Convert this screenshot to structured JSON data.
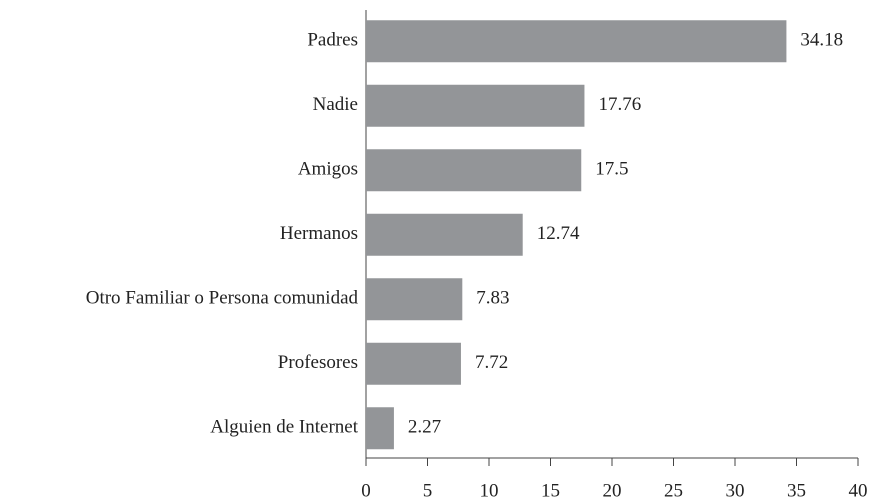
{
  "chart_data": {
    "type": "bar",
    "orientation": "horizontal",
    "categories": [
      "Padres",
      "Nadie",
      "Amigos",
      "Hermanos",
      "Otro Familiar o Persona comunidad",
      "Profesores",
      "Alguien de Internet"
    ],
    "values": [
      34.18,
      17.76,
      17.5,
      12.74,
      7.83,
      7.72,
      2.27
    ],
    "color": "#939598",
    "xlim": [
      0,
      40
    ],
    "xticks": [
      0,
      5,
      10,
      15,
      20,
      25,
      30,
      35,
      40
    ],
    "grid": false
  }
}
